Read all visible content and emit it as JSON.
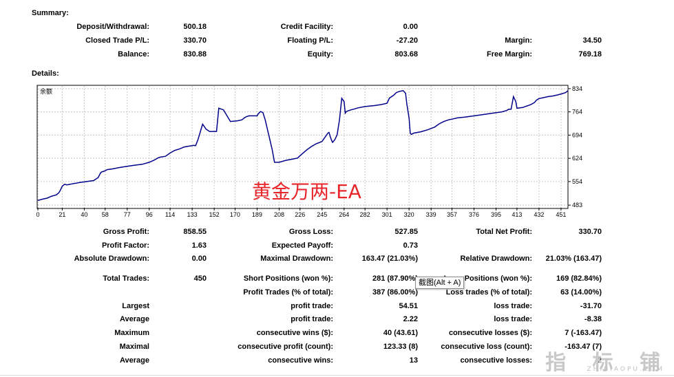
{
  "summary": {
    "title": "Summary:",
    "deposit_label": "Deposit/Withdrawal:",
    "deposit_value": "500.18",
    "credit_label": "Credit Facility:",
    "credit_value": "0.00",
    "closed_label": "Closed Trade P/L:",
    "closed_value": "330.70",
    "floating_label": "Floating P/L:",
    "floating_value": "-27.20",
    "margin_label": "Margin:",
    "margin_value": "34.50",
    "balance_label": "Balance:",
    "balance_value": "830.88",
    "equity_label": "Equity:",
    "equity_value": "803.68",
    "free_margin_label": "Free Margin:",
    "free_margin_value": "769.18"
  },
  "details": {
    "title": "Details:"
  },
  "chart_data": {
    "type": "line",
    "legend": "余额",
    "line_color": "#00008b",
    "grid": true,
    "x_ticks": [
      "0",
      "21",
      "40",
      "58",
      "77",
      "96",
      "114",
      "133",
      "152",
      "170",
      "189",
      "208",
      "226",
      "245",
      "264",
      "282",
      "301",
      "320",
      "339",
      "357",
      "376",
      "395",
      "413",
      "432",
      "451"
    ],
    "y_ticks": [
      "834",
      "764",
      "694",
      "624",
      "554",
      "483"
    ],
    "xlim": [
      0,
      457
    ],
    "ylim": [
      475,
      842
    ],
    "series": [
      {
        "x": [
          0,
          4,
          8,
          12,
          16,
          18,
          19,
          21,
          23,
          25,
          28,
          31,
          33,
          36,
          40,
          44,
          48,
          52,
          54,
          55,
          57,
          60,
          64,
          70,
          77,
          83,
          90,
          96,
          100,
          104,
          106,
          110,
          114,
          118,
          122,
          126,
          129,
          131,
          133,
          134,
          136,
          138,
          142,
          145,
          148,
          150,
          152,
          154,
          156,
          160,
          166,
          172,
          176,
          178,
          180,
          182,
          186,
          189,
          190,
          192,
          194,
          196,
          198,
          200,
          202,
          204,
          206,
          208,
          214,
          220,
          224,
          226,
          232,
          236,
          240,
          243,
          245,
          248,
          250,
          251,
          252,
          253,
          254,
          256,
          258,
          260,
          262,
          264,
          265,
          266,
          268,
          270,
          272,
          276,
          282,
          290,
          296,
          301,
          303,
          305,
          307,
          309,
          312,
          315,
          317,
          318,
          320,
          321,
          322,
          323,
          324,
          330,
          336,
          342,
          346,
          350,
          354,
          357,
          362,
          368,
          376,
          384,
          392,
          400,
          404,
          406,
          408,
          410,
          412,
          413,
          418,
          420,
          422,
          425,
          428,
          430,
          432,
          436,
          440,
          444,
          448,
          451,
          455,
          457
        ],
        "y": [
          497,
          501,
          504,
          510,
          514,
          520,
          525,
          540,
          546,
          544,
          546,
          548,
          549,
          551,
          553,
          555,
          557,
          566,
          580,
          583,
          585,
          590,
          592,
          596,
          600,
          603,
          606,
          612,
          618,
          626,
          628,
          630,
          640,
          648,
          652,
          658,
          660,
          661,
          662,
          663,
          662,
          680,
          727,
          712,
          705,
          705,
          705,
          705,
          775,
          770,
          735,
          737,
          740,
          746,
          750,
          752,
          752,
          752,
          758,
          765,
          762,
          740,
          710,
          680,
          650,
          612,
          612,
          612,
          618,
          622,
          625,
          632,
          650,
          660,
          668,
          672,
          675,
          690,
          700,
          702,
          690,
          680,
          672,
          680,
          695,
          740,
          805,
          795,
          760,
          765,
          768,
          770,
          772,
          776,
          780,
          783,
          786,
          790,
          805,
          810,
          815,
          822,
          826,
          828,
          820,
          790,
          745,
          700,
          696,
          698,
          700,
          704,
          710,
          718,
          728,
          735,
          740,
          742,
          746,
          748,
          752,
          756,
          760,
          764,
          768,
          772,
          772,
          810,
          795,
          775,
          777,
          780,
          782,
          786,
          792,
          800,
          804,
          807,
          810,
          812,
          815,
          818,
          822,
          828
        ]
      }
    ]
  },
  "stats": {
    "gross_profit_label": "Gross Profit:",
    "gross_profit_value": "858.55",
    "gross_loss_label": "Gross Loss:",
    "gross_loss_value": "527.85",
    "total_net_label": "Total Net Profit:",
    "total_net_value": "330.70",
    "profit_factor_label": "Profit Factor:",
    "profit_factor_value": "1.63",
    "expected_payoff_label": "Expected Payoff:",
    "expected_payoff_value": "0.73",
    "abs_dd_label": "Absolute Drawdown:",
    "abs_dd_value": "0.00",
    "max_dd_label": "Maximal Drawdown:",
    "max_dd_value": "163.47 (21.03%)",
    "rel_dd_label": "Relative Drawdown:",
    "rel_dd_value": "21.03% (163.47)",
    "total_trades_label": "Total Trades:",
    "total_trades_value": "450",
    "short_label": "Short Positions (won %):",
    "short_value": "281 (87.90%)",
    "long_label": "Long Positions (won %):",
    "long_value": "169 (82.84%)",
    "profit_trades_label": "Profit Trades (% of total):",
    "profit_trades_value": "387 (86.00%)",
    "loss_trades_label": "Loss trades (% of total):",
    "loss_trades_value": "63 (14.00%)",
    "largest_label": "Largest",
    "largest_profit_label": "profit trade:",
    "largest_profit_value": "54.51",
    "largest_loss_label": "loss trade:",
    "largest_loss_value": "-31.70",
    "average_label": "Average",
    "avg_profit_label": "profit trade:",
    "avg_profit_value": "2.22",
    "avg_loss_label": "loss trade:",
    "avg_loss_value": "-8.38",
    "maximum_label": "Maximum",
    "max_wins_label": "consecutive wins ($):",
    "max_wins_value": "40 (43.61)",
    "max_losses_label": "consecutive losses ($):",
    "max_losses_value": "7 (-163.47)",
    "maximal_label": "Maximal",
    "maxl_profit_label": "consecutive profit (count):",
    "maxl_profit_value": "123.33 (8)",
    "maxl_loss_label": "consecutive loss (count):",
    "maxl_loss_value": "-163.47 (7)",
    "average2_label": "Average",
    "avg_wins_label": "consecutive wins:",
    "avg_wins_value": "13",
    "avg_losses_label": "consecutive losses:",
    "avg_losses_value": "2"
  },
  "overlay": {
    "ea_text": "黄金万两-EA",
    "tooltip": "截图(Alt + A)",
    "watermark": "指 标 铺",
    "watermark_url": "ZHIBIAOPU.COM"
  }
}
